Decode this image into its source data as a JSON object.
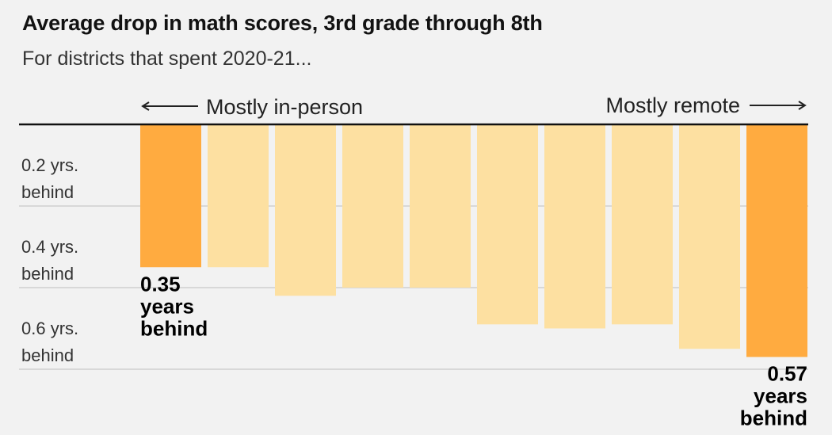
{
  "chart_data": {
    "type": "bar",
    "title": "Average drop in math scores, 3rd grade through 8th",
    "subtitle": "For districts that spent 2020-21...",
    "direction_labels": {
      "left": "Mostly in-person",
      "right": "Mostly remote"
    },
    "y_tick_labels": [
      [
        "0.2 yrs.",
        "behind"
      ],
      [
        "0.4 yrs.",
        "behind"
      ],
      [
        "0.6 yrs.",
        "behind"
      ]
    ],
    "y_ticks": [
      0.2,
      0.4,
      0.6
    ],
    "ylim": [
      0,
      0.6
    ],
    "inverted_axis": true,
    "grid": true,
    "values": [
      0.35,
      0.35,
      0.42,
      0.4,
      0.4,
      0.49,
      0.5,
      0.49,
      0.55,
      0.57
    ],
    "highlighted_index": [
      0,
      9
    ],
    "highlight_labels": [
      [
        "0.35",
        "years",
        "behind"
      ],
      [
        "0.57",
        "years",
        "behind"
      ]
    ],
    "colors": {
      "highlight": "#ffab40",
      "bar": "#fde0a1",
      "baseline": "#111111",
      "grid": "#cfcfcf",
      "text": "#121212"
    }
  }
}
